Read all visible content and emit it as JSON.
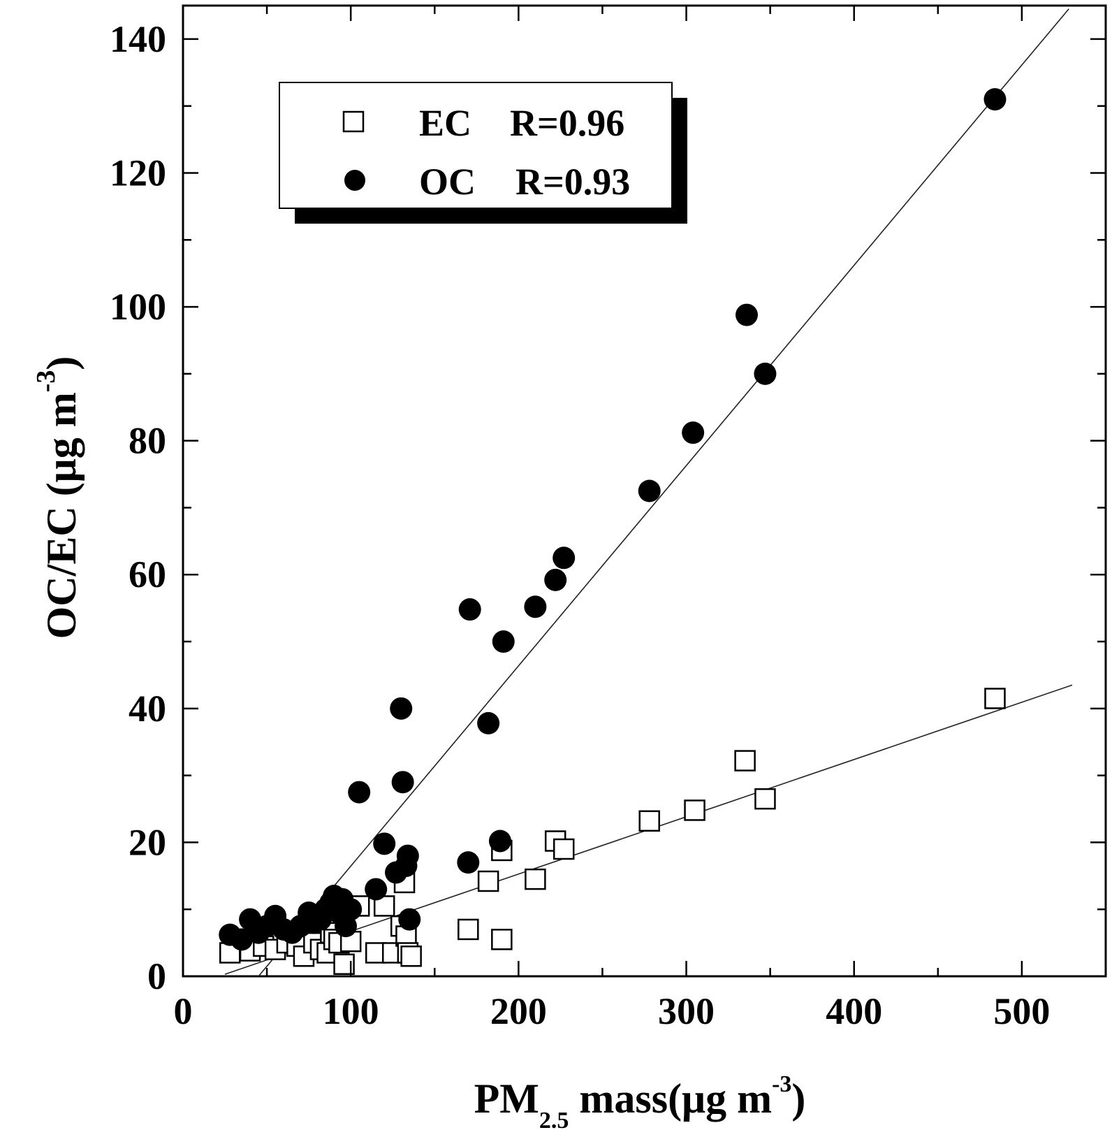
{
  "chart_data": {
    "type": "scatter",
    "xlim": [
      0,
      550
    ],
    "ylim": [
      0,
      145
    ],
    "x_ticks": [
      0,
      100,
      200,
      300,
      400,
      500
    ],
    "x_tick_labels": [
      "0",
      "100",
      "200",
      "300",
      "400",
      "500"
    ],
    "y_ticks": [
      0,
      20,
      40,
      60,
      80,
      100,
      120,
      140
    ],
    "y_tick_labels": [
      "0",
      "20",
      "40",
      "60",
      "80",
      "100",
      "120",
      "140"
    ],
    "x_minor_step": 50,
    "y_minor_step": 10,
    "xlabel": {
      "main": "PM",
      "sub": "2.5",
      "rest": " mass",
      "unit_open": "(μg m",
      "unit_sup": "-3",
      "unit_close": ")"
    },
    "ylabel": {
      "main": "OC/EC",
      "unit_open": "(μg m",
      "unit_sup": "-3",
      "unit_close": ")"
    },
    "legend_position": "top-left",
    "series": [
      {
        "name": "EC",
        "legend_label": "EC",
        "r_label": "R=0.96",
        "marker": "open-square",
        "fit": {
          "x0": 25,
          "y0": 0.3,
          "x1": 530,
          "y1": 43.5
        },
        "x": [
          28,
          40,
          48,
          55,
          62,
          68,
          72,
          78,
          82,
          86,
          88,
          90,
          93,
          96,
          100,
          105,
          115,
          120,
          125,
          130,
          132,
          133,
          134,
          136,
          170,
          182,
          190,
          190,
          210,
          222,
          227,
          278,
          305,
          335,
          347,
          484
        ],
        "y": [
          3.5,
          3.8,
          4.5,
          4.0,
          5.0,
          4.5,
          3.0,
          5.0,
          4.0,
          3.5,
          6.5,
          5.5,
          5.0,
          1.8,
          5.2,
          10.5,
          3.5,
          10.5,
          3.5,
          7.5,
          14.0,
          6.0,
          3.5,
          3.0,
          7.0,
          14.2,
          5.5,
          18.8,
          14.5,
          20.2,
          19.0,
          23.2,
          24.8,
          32.2,
          26.5,
          41.5
        ]
      },
      {
        "name": "OC",
        "legend_label": "OC",
        "r_label": "R=0.93",
        "marker": "filled-circle",
        "fit": {
          "x0": 45,
          "y0": 0,
          "x1": 528,
          "y1": 144.5
        },
        "x": [
          28,
          35,
          40,
          45,
          50,
          55,
          60,
          65,
          70,
          75,
          78,
          82,
          85,
          88,
          90,
          93,
          95,
          97,
          100,
          105,
          115,
          120,
          127,
          130,
          131,
          133,
          134,
          135,
          170,
          171,
          182,
          189,
          191,
          210,
          222,
          227,
          278,
          304,
          336,
          347,
          484
        ],
        "y": [
          6.2,
          5.5,
          8.5,
          6.5,
          7.5,
          9.0,
          7.0,
          6.5,
          7.5,
          9.5,
          8.0,
          8.5,
          10.0,
          11.0,
          12.0,
          9.5,
          11.5,
          7.5,
          10.0,
          27.5,
          13.0,
          19.8,
          15.5,
          40.0,
          29.0,
          16.5,
          18.0,
          8.5,
          17.0,
          54.8,
          37.8,
          20.2,
          50.0,
          55.2,
          59.2,
          62.5,
          72.5,
          81.2,
          98.8,
          90.0,
          131.0
        ]
      }
    ]
  }
}
